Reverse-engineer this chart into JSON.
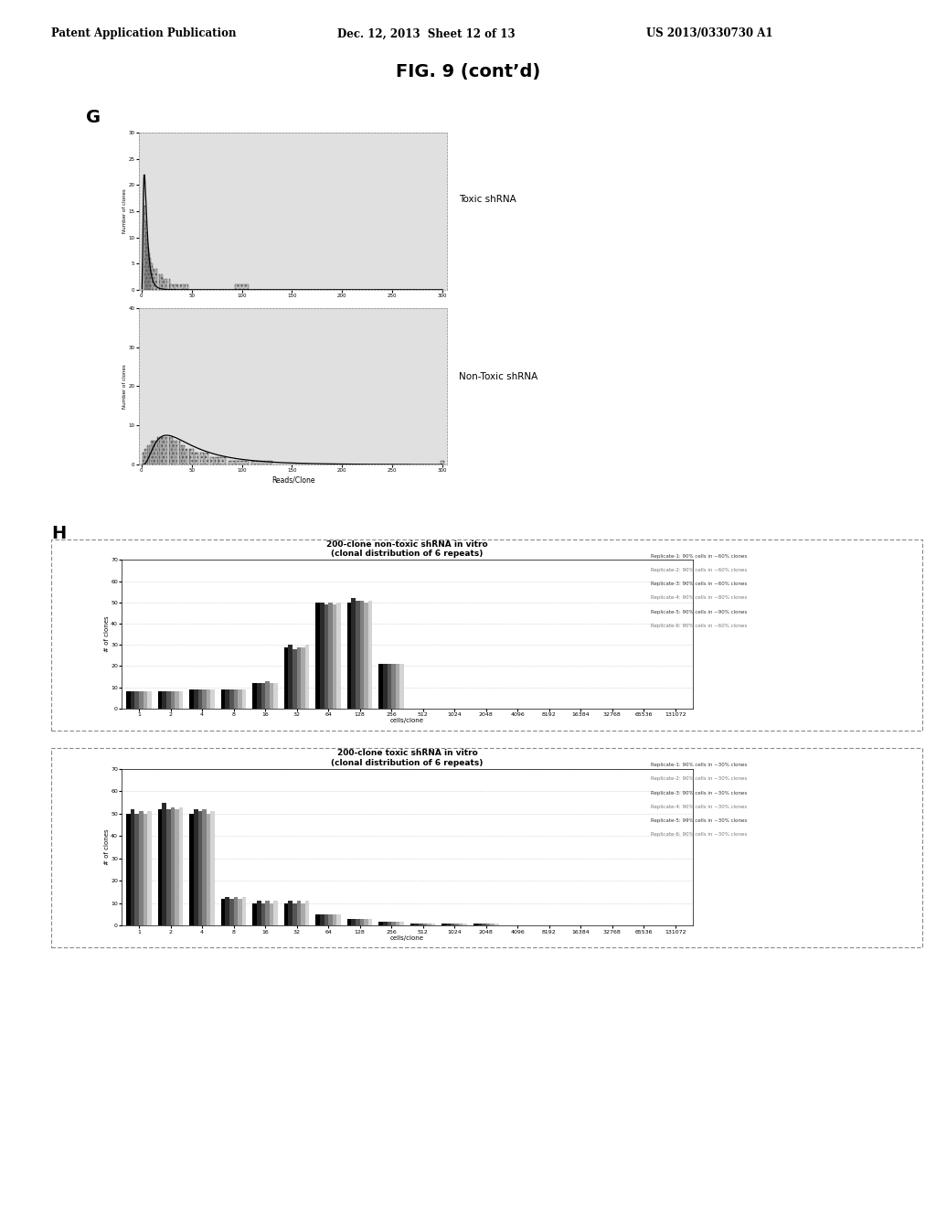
{
  "header_left": "Patent Application Publication",
  "header_mid": "Dec. 12, 2013  Sheet 12 of 13",
  "header_right": "US 2013/0330730 A1",
  "fig_title": "FIG. 9 (cont’d)",
  "panel_g_label": "G",
  "panel_h_label": "H",
  "toxic_label": "Toxic shRNA",
  "nontoxic_label": "Non-Toxic shRNA",
  "g_xlabel": "Reads/Clone",
  "g_ylabel": "Number of clones",
  "toxic_hist_x": [
    1,
    2,
    3,
    4,
    5,
    6,
    7,
    8,
    9,
    10,
    12,
    15,
    18,
    20,
    22,
    25,
    28,
    30,
    35,
    40,
    45,
    50,
    55,
    60,
    70,
    80,
    90,
    100,
    120,
    150,
    200,
    250,
    300
  ],
  "toxic_hist_y": [
    5,
    22,
    16,
    13,
    11,
    9,
    8,
    7,
    6,
    5,
    4,
    4,
    3,
    3,
    2,
    2,
    2,
    1,
    1,
    1,
    1,
    0,
    0,
    0,
    0,
    0,
    0,
    1,
    0,
    0,
    0,
    0,
    0
  ],
  "toxic_yticks": [
    0,
    5,
    10,
    15,
    20,
    25,
    30
  ],
  "toxic_xticks": [
    0,
    50,
    100,
    150,
    200,
    250,
    300
  ],
  "nontoxic_hist_x": [
    2,
    4,
    6,
    8,
    10,
    12,
    14,
    16,
    18,
    20,
    22,
    25,
    28,
    30,
    32,
    35,
    38,
    40,
    42,
    45,
    48,
    50,
    55,
    60,
    65,
    70,
    75,
    80,
    90,
    100,
    120,
    150,
    200,
    250,
    300
  ],
  "nontoxic_hist_y": [
    3,
    4,
    5,
    5,
    6,
    6,
    6,
    7,
    7,
    7,
    7,
    7,
    7,
    7,
    6,
    6,
    6,
    5,
    5,
    4,
    4,
    4,
    3,
    3,
    3,
    2,
    2,
    2,
    1,
    1,
    1,
    0,
    0,
    0,
    1
  ],
  "nontoxic_yticks": [
    0,
    10,
    20,
    30,
    40
  ],
  "nontoxic_xticks": [
    0,
    50,
    100,
    150,
    200,
    250,
    300
  ],
  "h_chart1_title": "200-clone non-toxic shRNA in vitro",
  "h_chart1_subtitle": "(clonal distribution of 6 repeats)",
  "h_chart2_title": "200-clone toxic shRNA in vitro",
  "h_chart2_subtitle": "(clonal distribution of 6 repeats)",
  "h_xlabel": "cells/clone",
  "h_ylabel": "# of clones",
  "h_categories": [
    "1",
    "2",
    "4",
    "8",
    "16",
    "32",
    "64",
    "128",
    "256",
    "512",
    "1024",
    "2048",
    "4096",
    "8192",
    "16384",
    "32768",
    "65536",
    "131072"
  ],
  "h_nontoxic_data": [
    [
      8,
      8,
      9,
      9,
      12,
      29,
      50,
      50,
      21,
      0,
      0,
      0,
      0,
      0,
      0,
      0,
      0,
      0
    ],
    [
      8,
      8,
      9,
      9,
      12,
      30,
      50,
      52,
      21,
      0,
      0,
      0,
      0,
      0,
      0,
      0,
      0,
      0
    ],
    [
      8,
      8,
      9,
      9,
      12,
      28,
      49,
      51,
      21,
      0,
      0,
      0,
      0,
      0,
      0,
      0,
      0,
      0
    ],
    [
      8,
      8,
      9,
      9,
      13,
      29,
      50,
      51,
      21,
      0,
      0,
      0,
      0,
      0,
      0,
      0,
      0,
      0
    ],
    [
      8,
      8,
      9,
      9,
      12,
      29,
      49,
      50,
      21,
      0,
      0,
      0,
      0,
      0,
      0,
      0,
      0,
      0
    ],
    [
      8,
      8,
      9,
      9,
      12,
      30,
      50,
      51,
      21,
      0,
      0,
      0,
      0,
      0,
      0,
      0,
      0,
      0
    ]
  ],
  "h_toxic_data": [
    [
      50,
      52,
      50,
      12,
      10,
      10,
      5,
      3,
      2,
      1,
      1,
      1,
      0,
      0,
      0,
      0,
      0,
      0
    ],
    [
      52,
      55,
      52,
      13,
      11,
      11,
      5,
      3,
      2,
      1,
      1,
      1,
      0,
      0,
      0,
      0,
      0,
      0
    ],
    [
      50,
      52,
      51,
      12,
      10,
      10,
      5,
      3,
      2,
      1,
      1,
      1,
      0,
      0,
      0,
      0,
      0,
      0
    ],
    [
      51,
      53,
      52,
      13,
      11,
      11,
      5,
      3,
      2,
      1,
      1,
      1,
      0,
      0,
      0,
      0,
      0,
      0
    ],
    [
      50,
      52,
      50,
      12,
      10,
      10,
      5,
      3,
      2,
      1,
      1,
      1,
      0,
      0,
      0,
      0,
      0,
      0
    ],
    [
      51,
      53,
      51,
      13,
      11,
      11,
      5,
      3,
      2,
      1,
      1,
      1,
      0,
      0,
      0,
      0,
      0,
      0
    ]
  ],
  "h_nontoxic_legend": [
    "Replicate-1: 90% cells in ~60% clones",
    "Replicate-2: 90% cells in ~60% clones",
    "Replicate-3: 90% cells in ~60% clones",
    "Replicate-4: 90% cells in ~80% clones",
    "Replicate-5: 90% cells in ~90% clones",
    "Replicate-6: 90% cells in ~60% clones"
  ],
  "h_toxic_legend": [
    "Replicate-1: 90% cells in ~30% clones",
    "Replicate-2: 90% cells in ~30% clones",
    "Replicate-3: 90% cells in ~30% clones",
    "Replicate-4: 90% cells in ~30% clones",
    "Replicate-5: 99% cells in ~30% clones",
    "Replicate-6: 90% cells in ~30% clones"
  ],
  "h_yticks": [
    0,
    10,
    20,
    30,
    40,
    50,
    60,
    70
  ],
  "bar_colors": [
    "#000000",
    "#2a2a2a",
    "#555555",
    "#808080",
    "#aaaaaa",
    "#d4d4d4"
  ],
  "plot_bg": "#e0e0e0",
  "white": "#ffffff"
}
